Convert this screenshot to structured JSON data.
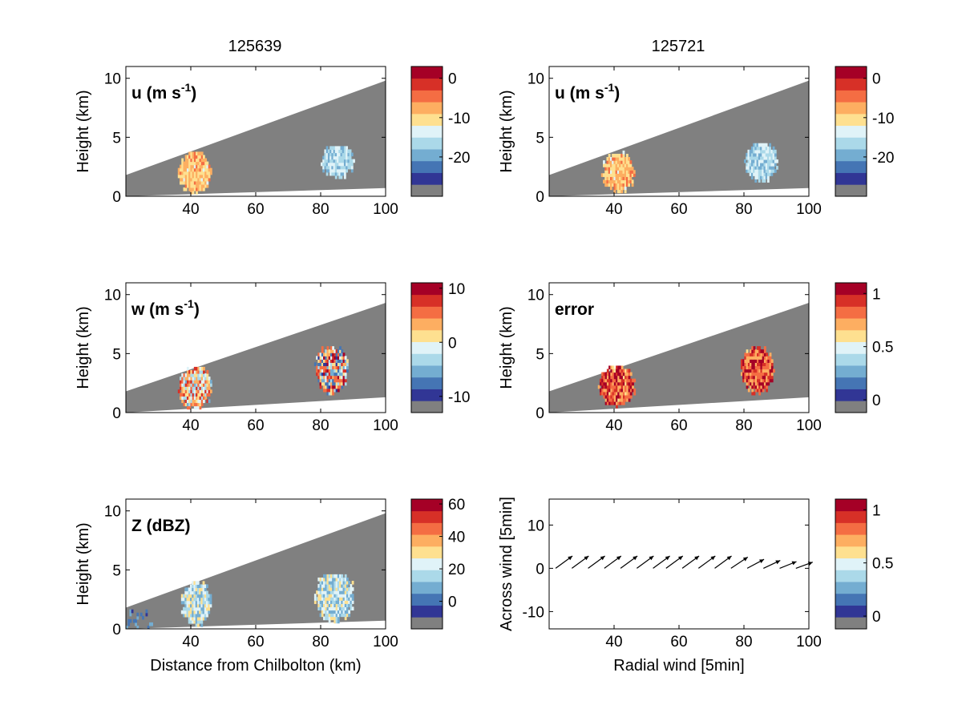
{
  "figure": {
    "column_titles": [
      "125639",
      "125721"
    ]
  },
  "colormap": {
    "name": "diverging blue-red with grey no-data",
    "no_data_color": "#808080",
    "colors": [
      "#313695",
      "#4575b4",
      "#74add1",
      "#abd9e9",
      "#e0f3f8",
      "#fee090",
      "#fdae61",
      "#f46d43",
      "#d73027",
      "#a50026"
    ]
  },
  "chart_data": [
    {
      "type": "heatmap",
      "id": "u-125639",
      "column_title": "125639",
      "panel_label": "u (m s",
      "panel_label_sup": "-1",
      "panel_label_end": ")",
      "ylabel": "Height (km)",
      "xlabel": "",
      "xlim": [
        20,
        100
      ],
      "ylim": [
        0,
        11
      ],
      "xticks": [
        "40",
        "60",
        "80",
        "100"
      ],
      "yticks": [
        "0",
        "5",
        "10"
      ],
      "beam_sector_height_km": {
        "at_x": [
          20,
          100
        ],
        "top": [
          1.8,
          9.8
        ],
        "bottom": [
          0.0,
          0.7
        ]
      },
      "colorbar": {
        "ticks": [
          "0",
          "-10",
          "-20"
        ],
        "tick_values": [
          0,
          -10,
          -20
        ],
        "range": [
          -30,
          3
        ]
      },
      "features": [
        {
          "x_range_km": [
            36,
            46
          ],
          "z_range_km": [
            0.2,
            3.6
          ],
          "value_range": [
            -14,
            -6
          ],
          "note": "orange"
        },
        {
          "x_range_km": [
            80,
            90
          ],
          "z_range_km": [
            1.5,
            4.2
          ],
          "value_range": [
            -22,
            -14
          ],
          "note": "light blue"
        }
      ]
    },
    {
      "type": "heatmap",
      "id": "u-125721",
      "column_title": "125721",
      "panel_label": "u (m s",
      "panel_label_sup": "-1",
      "panel_label_end": ")",
      "ylabel": "Height (km)",
      "xlabel": "",
      "xlim": [
        20,
        100
      ],
      "ylim": [
        0,
        11
      ],
      "xticks": [
        "40",
        "60",
        "80",
        "100"
      ],
      "yticks": [
        "0",
        "5",
        "10"
      ],
      "beam_sector_height_km": {
        "at_x": [
          20,
          100
        ],
        "top": [
          1.8,
          9.8
        ],
        "bottom": [
          0.0,
          0.7
        ]
      },
      "colorbar": {
        "ticks": [
          "0",
          "-10",
          "-20"
        ],
        "tick_values": [
          0,
          -10,
          -20
        ],
        "range": [
          -30,
          3
        ]
      },
      "features": [
        {
          "x_range_km": [
            36,
            46
          ],
          "z_range_km": [
            0.3,
            3.6
          ],
          "value_range": [
            -14,
            -6
          ],
          "note": "orange"
        },
        {
          "x_range_km": [
            80,
            90
          ],
          "z_range_km": [
            1.2,
            4.4
          ],
          "value_range": [
            -22,
            -14
          ],
          "note": "light blue"
        }
      ]
    },
    {
      "type": "heatmap",
      "id": "w-125639",
      "column_title": "125639",
      "panel_label": "w (m s",
      "panel_label_sup": "-1",
      "panel_label_end": ")",
      "ylabel": "Height (km)",
      "xlabel": "",
      "xlim": [
        20,
        100
      ],
      "ylim": [
        0,
        11
      ],
      "xticks": [
        "40",
        "60",
        "80",
        "100"
      ],
      "yticks": [
        "0",
        "5",
        "10"
      ],
      "beam_sector_height_km": {
        "at_x": [
          20,
          100
        ],
        "top": [
          1.8,
          9.3
        ],
        "bottom": [
          0.0,
          1.3
        ]
      },
      "colorbar": {
        "ticks": [
          "10",
          "0",
          "-10"
        ],
        "tick_values": [
          10,
          0,
          -10
        ],
        "range": [
          -13,
          11
        ]
      },
      "features": [
        {
          "x_range_km": [
            36,
            46
          ],
          "z_range_km": [
            0.3,
            3.7
          ],
          "value_range": [
            -6,
            8
          ],
          "note": "mixed red and blue"
        },
        {
          "x_range_km": [
            78,
            88
          ],
          "z_range_km": [
            1.5,
            5.5
          ],
          "value_range": [
            -12,
            10
          ],
          "note": "strong dipole"
        }
      ]
    },
    {
      "type": "heatmap",
      "id": "error-125721",
      "column_title": "125721",
      "panel_label": "error",
      "panel_label_sup": "",
      "panel_label_end": "",
      "ylabel": "Height (km)",
      "xlabel": "",
      "xlim": [
        20,
        100
      ],
      "ylim": [
        0,
        11
      ],
      "xticks": [
        "40",
        "60",
        "80",
        "100"
      ],
      "yticks": [
        "0",
        "5",
        "10"
      ],
      "beam_sector_height_km": {
        "at_x": [
          20,
          100
        ],
        "top": [
          1.8,
          9.3
        ],
        "bottom": [
          0.0,
          1.3
        ]
      },
      "colorbar": {
        "ticks": [
          "1",
          "0.5",
          "0"
        ],
        "tick_values": [
          1,
          0.5,
          0
        ],
        "range": [
          -0.12,
          1.1
        ]
      },
      "features": [
        {
          "x_range_km": [
            35,
            46
          ],
          "z_range_km": [
            0.4,
            3.8
          ],
          "value_range": [
            0.6,
            1.1
          ],
          "note": "mostly dark red"
        },
        {
          "x_range_km": [
            79,
            89
          ],
          "z_range_km": [
            1.5,
            5.4
          ],
          "value_range": [
            0.6,
            1.1
          ],
          "note": "mostly dark red"
        }
      ]
    },
    {
      "type": "heatmap",
      "id": "z-125639",
      "column_title": "125639",
      "panel_label": "Z (dBZ)",
      "panel_label_sup": "",
      "panel_label_end": "",
      "ylabel": "Height (km)",
      "xlabel": "Distance from Chilbolton (km)",
      "xlim": [
        20,
        100
      ],
      "ylim": [
        0,
        11
      ],
      "xticks": [
        "40",
        "60",
        "80",
        "100"
      ],
      "yticks": [
        "0",
        "5",
        "10"
      ],
      "beam_sector_height_km": {
        "at_x": [
          20,
          100
        ],
        "top": [
          1.8,
          9.8
        ],
        "bottom": [
          0.0,
          0.7
        ]
      },
      "colorbar": {
        "ticks": [
          "60",
          "40",
          "20",
          "0"
        ],
        "tick_values": [
          60,
          40,
          20,
          0
        ],
        "range": [
          -17,
          63
        ]
      },
      "features": [
        {
          "x_range_km": [
            37,
            46
          ],
          "z_range_km": [
            0.2,
            3.9
          ],
          "value_range": [
            0,
            30
          ],
          "note": "blue cells"
        },
        {
          "x_range_km": [
            78,
            90
          ],
          "z_range_km": [
            0.5,
            4.6
          ],
          "value_range": [
            0,
            30
          ],
          "note": "blue cells"
        },
        {
          "x_range_km": [
            20,
            28
          ],
          "z_range_km": [
            0.0,
            1.6
          ],
          "value_range": [
            -12,
            5
          ],
          "note": "scattered clutter"
        }
      ]
    },
    {
      "type": "scatter",
      "id": "wind-vectors",
      "column_title": "125721",
      "panel_label": "",
      "ylabel": "Across wind [5min]",
      "xlabel": "Radial wind [5min]",
      "xlim": [
        20,
        100
      ],
      "ylim": [
        -14,
        16
      ],
      "xticks": [
        "40",
        "60",
        "80",
        "100"
      ],
      "yticks": [
        "10",
        "0",
        "-10"
      ],
      "colorbar": {
        "ticks": [
          "1",
          "0.5",
          "0"
        ],
        "tick_values": [
          1,
          0.5,
          0
        ],
        "range": [
          -0.12,
          1.1
        ]
      },
      "x": [
        22,
        27,
        32,
        37,
        42,
        47,
        52,
        56,
        61,
        66,
        71,
        76,
        81,
        86,
        91,
        96
      ],
      "y": [
        0,
        0,
        0,
        0,
        0,
        0,
        0,
        0,
        0,
        0,
        0,
        0,
        0,
        0,
        0,
        0
      ],
      "vector_u": [
        3,
        3,
        3,
        3,
        3,
        3,
        3,
        3,
        3,
        3,
        3,
        3,
        3,
        3,
        3,
        3
      ],
      "vector_v": [
        2.2,
        2.2,
        2.2,
        2.2,
        2.2,
        2.2,
        2.2,
        2.2,
        2.2,
        2.2,
        2.2,
        2.0,
        1.6,
        1.4,
        1.2,
        1.1
      ]
    }
  ]
}
